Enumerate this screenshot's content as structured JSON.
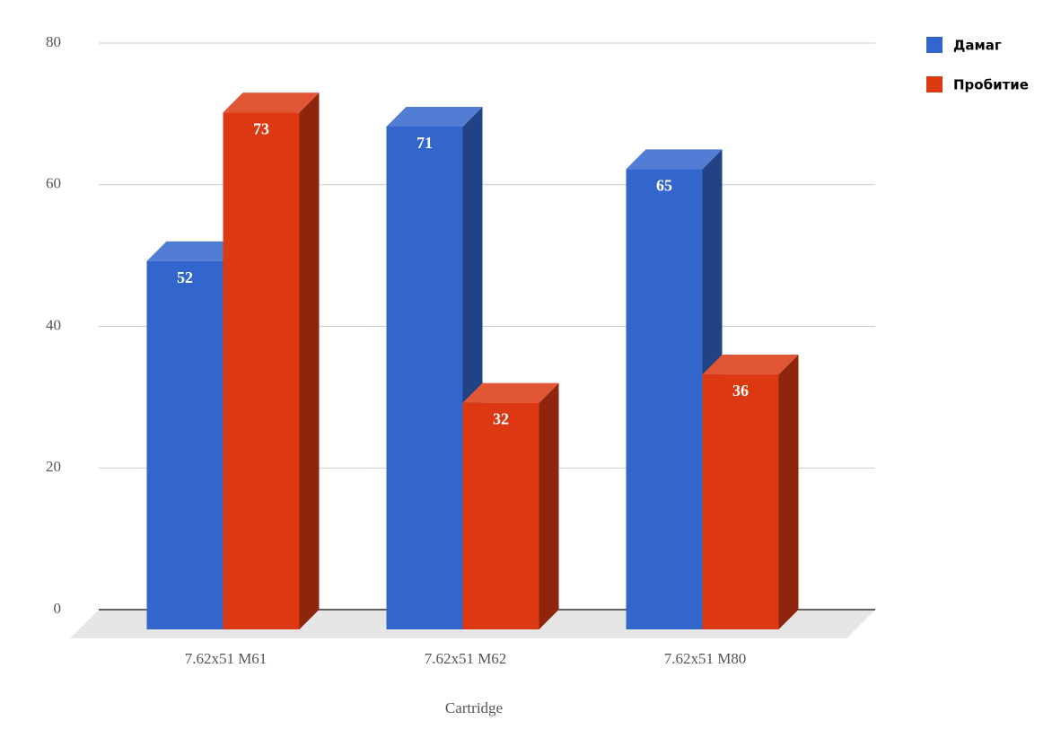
{
  "chart_data": {
    "type": "bar3d",
    "x_label": "Cartridge",
    "categories": [
      "7.62x51 M61",
      "7.62x51 M62",
      "7.62x51 M80"
    ],
    "series": [
      {
        "name": "Дамаг",
        "color": "#3366cc",
        "values": [
          52,
          71,
          65
        ]
      },
      {
        "name": "Пробитие",
        "color": "#dc3912",
        "values": [
          73,
          32,
          36
        ]
      }
    ],
    "ylim": [
      0,
      80
    ],
    "yticks": [
      0,
      20,
      40,
      60,
      80
    ],
    "grid": true,
    "legend": "right"
  }
}
